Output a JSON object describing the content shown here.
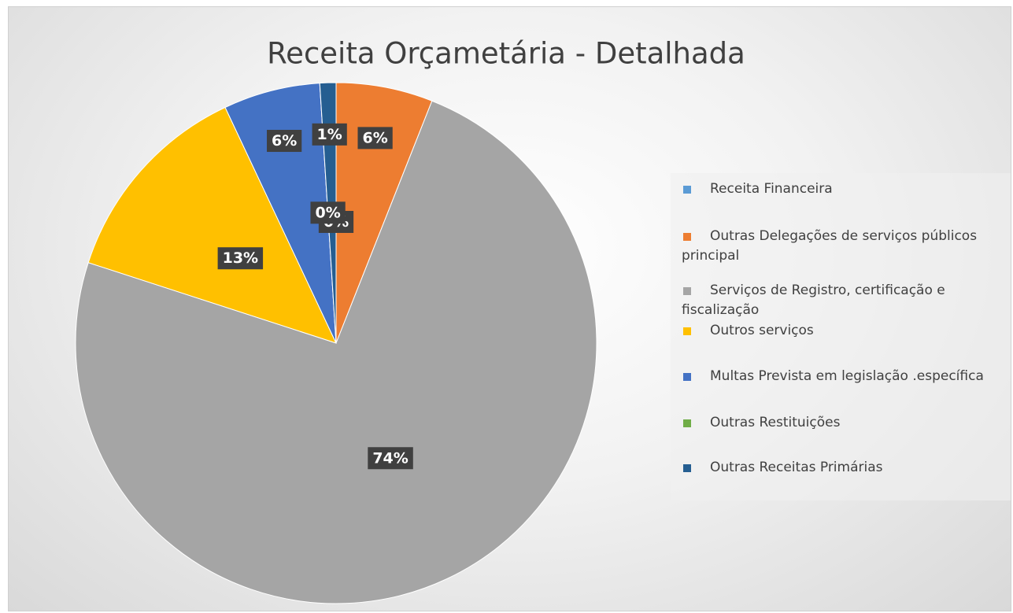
{
  "chart_data": {
    "type": "pie",
    "title": "Receita Orçametária - Detalhada",
    "categories": [
      "Receita Financeira",
      "Outras Delegações de serviços públicos principal",
      "Serviços de Registro, certificação e fiscalização",
      "Outros serviços",
      "Multas Prevista em legislação .específica",
      "Outras Restituições",
      "Outras Receitas Primárias"
    ],
    "values": [
      0,
      6,
      74,
      13,
      6,
      0,
      1
    ],
    "value_labels": [
      "0%",
      "6%",
      "74%",
      "13%",
      "6%",
      "0%",
      "1%"
    ],
    "colors": [
      "#5b9bd5",
      "#ed7d31",
      "#a5a5a5",
      "#ffc000",
      "#4472c4",
      "#70ad47",
      "#255e91"
    ],
    "legend": "right"
  }
}
